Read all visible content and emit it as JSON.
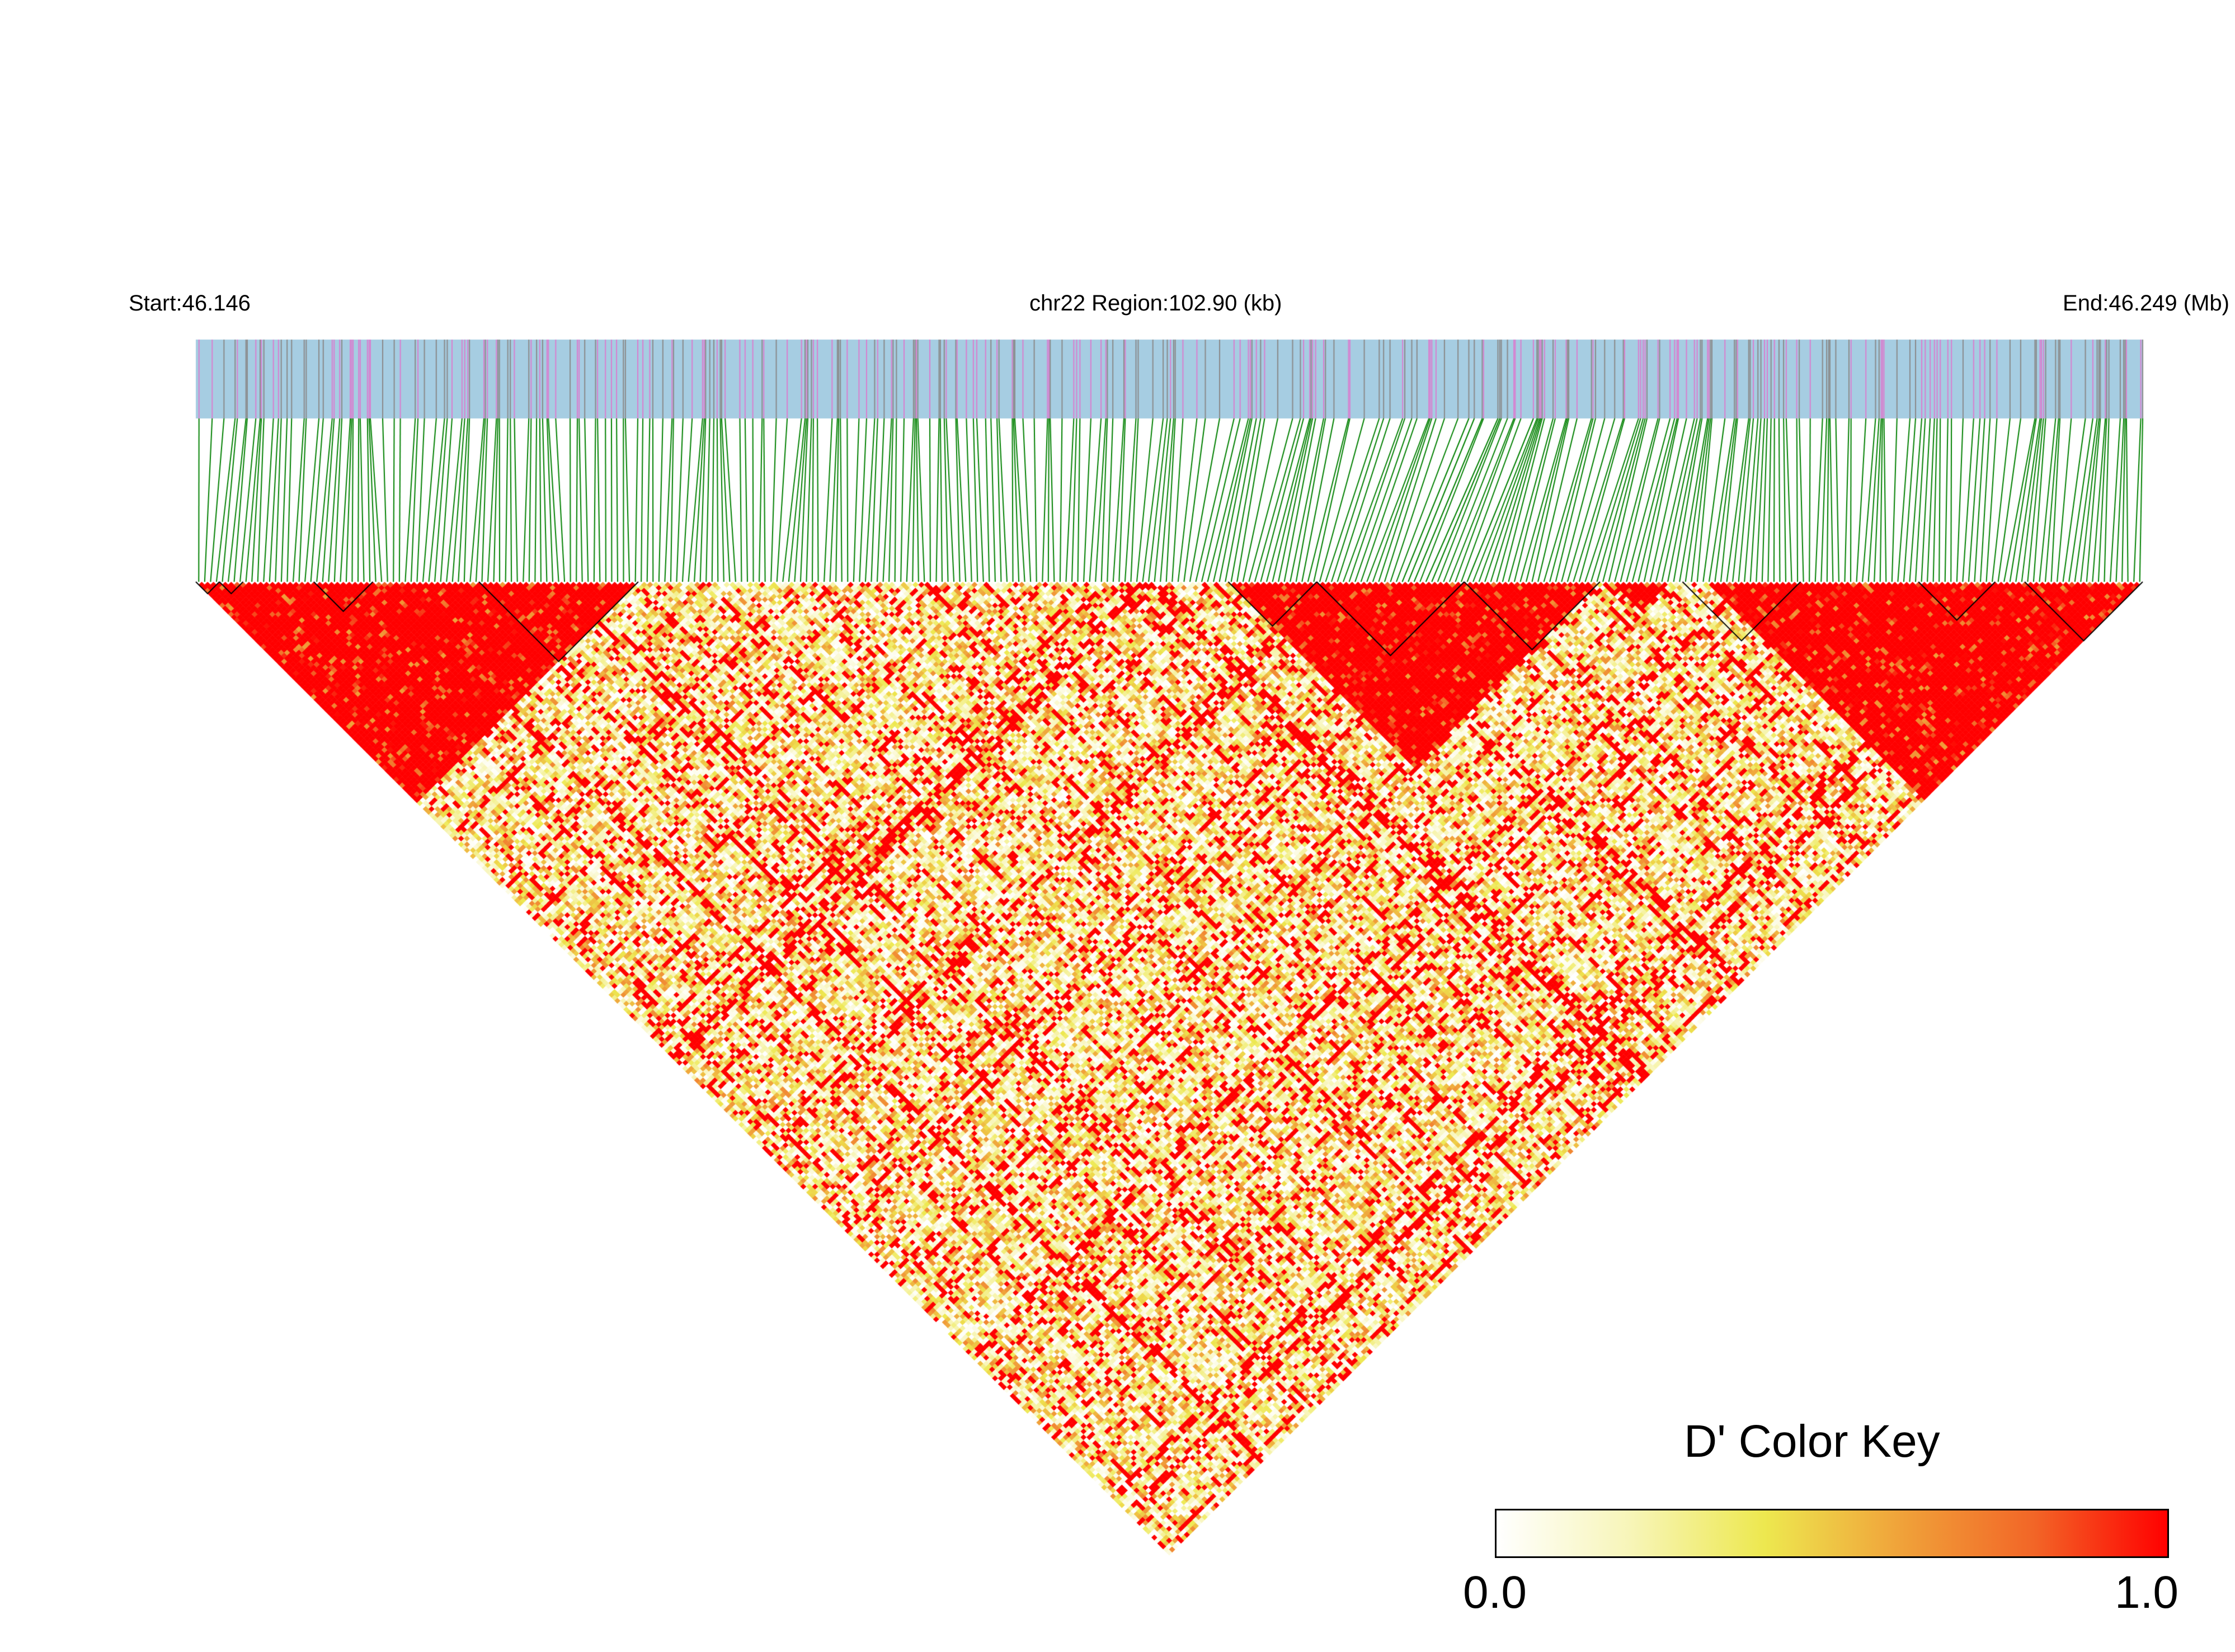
{
  "header": {
    "start": "Start:46.146",
    "region": "chr22 Region:102.90 (kb)",
    "end": "End:46.249 (Mb)"
  },
  "color_key": {
    "title": "D' Color Key",
    "min_label": "0.0",
    "max_label": "1.0",
    "gradient": [
      "#ffffff",
      "#f7f5b8",
      "#ede84f",
      "#f0a33a",
      "#f26627",
      "#ff0000"
    ]
  },
  "colors": {
    "track_bg": "#a6cde2",
    "snp_gray": "#8a8a8a",
    "snp_pink": "#d97fcf",
    "connector": "#008000",
    "ld_high": "#ff0000"
  },
  "chart_data": {
    "type": "heatmap",
    "region": "chr22",
    "start_mb": 46.146,
    "end_mb": 46.249,
    "span_kb": 102.9,
    "snp_count": 330,
    "value_range": [
      0.0,
      1.0
    ],
    "high_ld_blocks": [
      {
        "from_index": 0,
        "to_index": 75
      },
      {
        "from_index": 175,
        "to_index": 238
      },
      {
        "from_index": 240,
        "to_index": 250
      },
      {
        "from_index": 256,
        "to_index": 330
      }
    ]
  }
}
